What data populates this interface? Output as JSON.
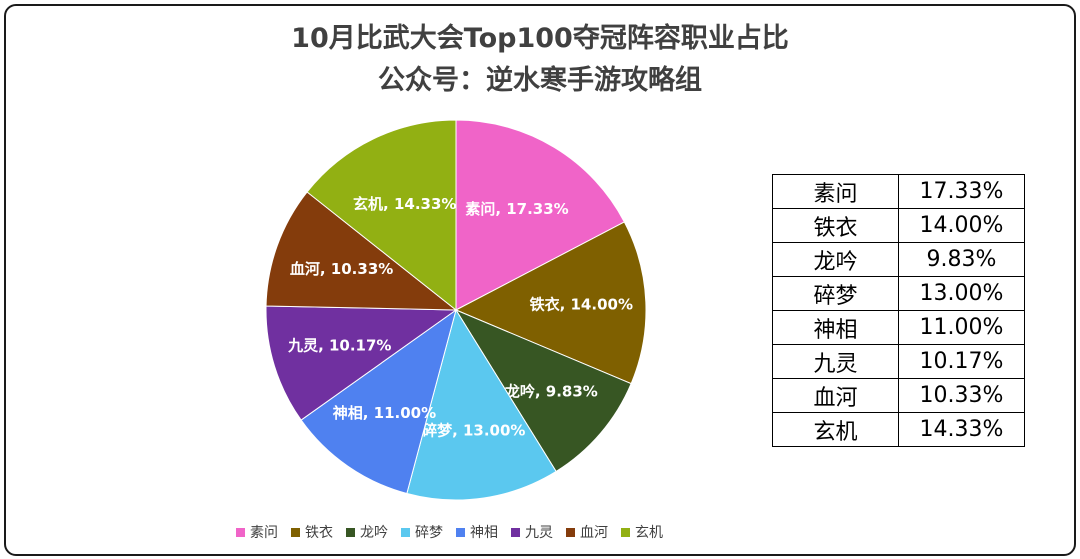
{
  "title": {
    "line1": "10月比武大会Top100夺冠阵容职业占比",
    "line2": "公众号：逆水寒手游攻略组"
  },
  "chart_data": {
    "type": "pie",
    "categories": [
      "素问",
      "铁衣",
      "龙吟",
      "碎梦",
      "神相",
      "九灵",
      "血河",
      "玄机"
    ],
    "values": [
      17.33,
      14.0,
      9.83,
      13.0,
      11.0,
      10.17,
      10.33,
      14.33
    ],
    "value_labels": [
      "17.33%",
      "14.00%",
      "9.83%",
      "13.00%",
      "11.00%",
      "10.17%",
      "10.33%",
      "14.33%"
    ],
    "colors": [
      "#f064c8",
      "#7f6000",
      "#375623",
      "#5bc8ef",
      "#4f81f0",
      "#7030a0",
      "#843c0c",
      "#92b013"
    ],
    "slice_labels": [
      "素问, 17.33%",
      "铁衣, 14.00%",
      "龙吟, 9.83%",
      "碎梦, 13.00%",
      "神相, 11.00%",
      "九灵, 10.17%",
      "血河, 10.33%",
      "玄机, 14.33%"
    ],
    "legend_position": "bottom"
  },
  "table": {
    "rows": [
      {
        "name": "素问",
        "value": "17.33%"
      },
      {
        "name": "铁衣",
        "value": "14.00%"
      },
      {
        "name": "龙吟",
        "value": "9.83%"
      },
      {
        "name": "碎梦",
        "value": "13.00%"
      },
      {
        "name": "神相",
        "value": "11.00%"
      },
      {
        "name": "九灵",
        "value": "10.17%"
      },
      {
        "name": "血河",
        "value": "10.33%"
      },
      {
        "name": "玄机",
        "value": "14.33%"
      }
    ]
  }
}
